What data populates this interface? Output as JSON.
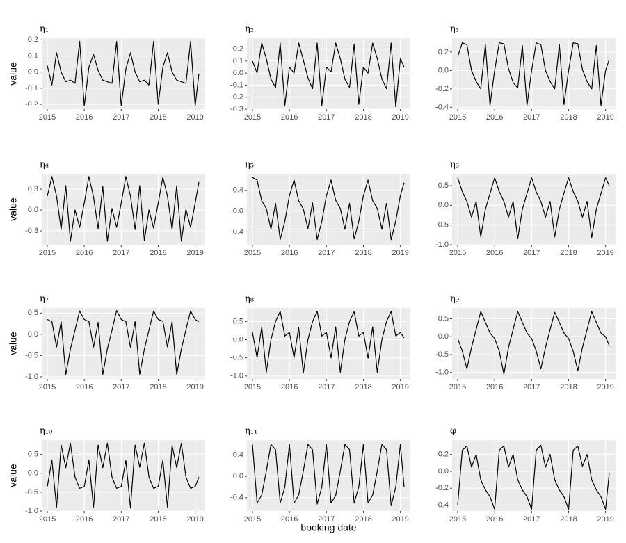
{
  "chart_data": [
    {
      "type": "line",
      "title": "η₁",
      "ylabel": "value",
      "color": "#000000",
      "grid": true,
      "x": [
        2015,
        2015.125,
        2015.25,
        2015.375,
        2015.5,
        2015.625,
        2015.75,
        2015.875,
        2016,
        2016.125,
        2016.25,
        2016.375,
        2016.5,
        2016.625,
        2016.75,
        2016.875,
        2017,
        2017.125,
        2017.25,
        2017.375,
        2017.5,
        2017.625,
        2017.75,
        2017.875,
        2018,
        2018.125,
        2018.25,
        2018.375,
        2018.5,
        2018.625,
        2018.75,
        2018.875,
        2019,
        2019.1
      ],
      "values": [
        0.04,
        -0.08,
        0.12,
        0.0,
        -0.06,
        -0.05,
        -0.07,
        0.19,
        -0.21,
        0.03,
        0.11,
        0.01,
        -0.05,
        -0.06,
        -0.07,
        0.19,
        -0.21,
        0.02,
        0.12,
        0.0,
        -0.06,
        -0.05,
        -0.08,
        0.19,
        -0.2,
        0.03,
        0.12,
        0.0,
        -0.05,
        -0.06,
        -0.07,
        0.19,
        -0.21,
        -0.01
      ],
      "xlim": [
        2014.85,
        2019.27
      ],
      "xticks": [
        2015,
        2016,
        2017,
        2018,
        2019
      ],
      "ylim": [
        -0.23,
        0.21
      ],
      "yticks": [
        -0.2,
        -0.1,
        {
          "value": 0,
          "label": "0.0"
        },
        0.1,
        0.2
      ]
    },
    {
      "type": "line",
      "title": "η₂",
      "color": "#000000",
      "grid": true,
      "x": [
        2015,
        2015.125,
        2015.25,
        2015.375,
        2015.5,
        2015.625,
        2015.75,
        2015.875,
        2016,
        2016.125,
        2016.25,
        2016.375,
        2016.5,
        2016.625,
        2016.75,
        2016.875,
        2017,
        2017.125,
        2017.25,
        2017.375,
        2017.5,
        2017.625,
        2017.75,
        2017.875,
        2018,
        2018.125,
        2018.25,
        2018.375,
        2018.5,
        2018.625,
        2018.75,
        2018.875,
        2019,
        2019.1
      ],
      "values": [
        0.1,
        0.0,
        0.25,
        0.12,
        -0.05,
        -0.12,
        0.25,
        -0.27,
        0.05,
        0.0,
        0.25,
        0.11,
        -0.04,
        -0.13,
        0.25,
        -0.27,
        0.05,
        0.01,
        0.25,
        0.12,
        -0.05,
        -0.12,
        0.24,
        -0.26,
        0.05,
        0.0,
        0.25,
        0.12,
        -0.05,
        -0.13,
        0.25,
        -0.28,
        0.12,
        0.05
      ],
      "xlim": [
        2014.85,
        2019.27
      ],
      "xticks": [
        2015,
        2016,
        2017,
        2018,
        2019
      ],
      "ylim": [
        -0.3,
        0.29
      ],
      "yticks": [
        -0.3,
        -0.2,
        -0.1,
        {
          "value": 0,
          "label": "0.0"
        },
        0.1,
        0.2
      ]
    },
    {
      "type": "line",
      "title": "η₃",
      "color": "#000000",
      "grid": true,
      "x": [
        2015,
        2015.125,
        2015.25,
        2015.375,
        2015.5,
        2015.625,
        2015.75,
        2015.875,
        2016,
        2016.125,
        2016.25,
        2016.375,
        2016.5,
        2016.625,
        2016.75,
        2016.875,
        2017,
        2017.125,
        2017.25,
        2017.375,
        2017.5,
        2017.625,
        2017.75,
        2017.875,
        2018,
        2018.125,
        2018.25,
        2018.375,
        2018.5,
        2018.625,
        2018.75,
        2018.875,
        2019,
        2019.1
      ],
      "values": [
        0.15,
        0.3,
        0.28,
        0.0,
        -0.12,
        -0.2,
        0.28,
        -0.38,
        0.0,
        0.3,
        0.29,
        0.02,
        -0.13,
        -0.19,
        0.27,
        -0.38,
        0.0,
        0.3,
        0.28,
        0.0,
        -0.12,
        -0.2,
        0.28,
        -0.37,
        0.0,
        0.3,
        0.29,
        0.01,
        -0.12,
        -0.2,
        0.27,
        -0.38,
        0.0,
        0.12
      ],
      "xlim": [
        2014.85,
        2019.27
      ],
      "xticks": [
        2015,
        2016,
        2017,
        2018,
        2019
      ],
      "ylim": [
        -0.42,
        0.35
      ],
      "yticks": [
        -0.4,
        -0.2,
        {
          "value": 0,
          "label": "0.0"
        },
        0.2
      ]
    },
    {
      "type": "line",
      "title": "η₄",
      "ylabel": "value",
      "color": "#000000",
      "grid": true,
      "x": [
        2015,
        2015.125,
        2015.25,
        2015.375,
        2015.5,
        2015.625,
        2015.75,
        2015.875,
        2016,
        2016.125,
        2016.25,
        2016.375,
        2016.5,
        2016.625,
        2016.75,
        2016.875,
        2017,
        2017.125,
        2017.25,
        2017.375,
        2017.5,
        2017.625,
        2017.75,
        2017.875,
        2018,
        2018.125,
        2018.25,
        2018.375,
        2018.5,
        2018.625,
        2018.75,
        2018.875,
        2019,
        2019.1
      ],
      "values": [
        0.2,
        0.48,
        0.2,
        -0.28,
        0.35,
        -0.45,
        0.0,
        -0.25,
        0.1,
        0.48,
        0.19,
        -0.27,
        0.34,
        -0.45,
        0.02,
        -0.25,
        0.1,
        0.48,
        0.2,
        -0.28,
        0.35,
        -0.44,
        0.0,
        -0.26,
        0.1,
        0.47,
        0.2,
        -0.28,
        0.35,
        -0.45,
        0.01,
        -0.25,
        0.1,
        0.4
      ],
      "xlim": [
        2014.85,
        2019.27
      ],
      "xticks": [
        2015,
        2016,
        2017,
        2018,
        2019
      ],
      "ylim": [
        -0.5,
        0.52
      ],
      "yticks": [
        -0.3,
        {
          "value": 0,
          "label": "0.0"
        },
        0.3
      ]
    },
    {
      "type": "line",
      "title": "η₅",
      "color": "#000000",
      "grid": true,
      "x": [
        2015,
        2015.125,
        2015.25,
        2015.375,
        2015.5,
        2015.625,
        2015.75,
        2015.875,
        2016,
        2016.125,
        2016.25,
        2016.375,
        2016.5,
        2016.625,
        2016.75,
        2016.875,
        2017,
        2017.125,
        2017.25,
        2017.375,
        2017.5,
        2017.625,
        2017.75,
        2017.875,
        2018,
        2018.125,
        2018.25,
        2018.375,
        2018.5,
        2018.625,
        2018.75,
        2018.875,
        2019,
        2019.1
      ],
      "values": [
        0.65,
        0.6,
        0.2,
        0.05,
        -0.35,
        0.15,
        -0.55,
        -0.2,
        0.3,
        0.6,
        0.2,
        0.04,
        -0.34,
        0.16,
        -0.55,
        -0.2,
        0.3,
        0.6,
        0.21,
        0.05,
        -0.35,
        0.15,
        -0.54,
        -0.2,
        0.3,
        0.6,
        0.2,
        0.05,
        -0.35,
        0.15,
        -0.55,
        -0.19,
        0.3,
        0.55
      ],
      "xlim": [
        2014.85,
        2019.27
      ],
      "xticks": [
        2015,
        2016,
        2017,
        2018,
        2019
      ],
      "ylim": [
        -0.65,
        0.72
      ],
      "yticks": [
        -0.4,
        {
          "value": 0,
          "label": "0.0"
        },
        0.4
      ]
    },
    {
      "type": "line",
      "title": "η₆",
      "color": "#000000",
      "grid": true,
      "x": [
        2015,
        2015.125,
        2015.25,
        2015.375,
        2015.5,
        2015.625,
        2015.75,
        2015.875,
        2016,
        2016.125,
        2016.25,
        2016.375,
        2016.5,
        2016.625,
        2016.75,
        2016.875,
        2017,
        2017.125,
        2017.25,
        2017.375,
        2017.5,
        2017.625,
        2017.75,
        2017.875,
        2018,
        2018.125,
        2018.25,
        2018.375,
        2018.5,
        2018.625,
        2018.75,
        2018.875,
        2019,
        2019.1
      ],
      "values": [
        0.7,
        0.35,
        0.1,
        -0.3,
        0.1,
        -0.8,
        -0.1,
        0.3,
        0.7,
        0.35,
        0.1,
        -0.3,
        0.1,
        -0.85,
        -0.1,
        0.3,
        0.7,
        0.34,
        0.1,
        -0.3,
        0.1,
        -0.8,
        -0.1,
        0.31,
        0.7,
        0.35,
        0.1,
        -0.3,
        0.1,
        -0.82,
        -0.1,
        0.3,
        0.7,
        0.5
      ],
      "xlim": [
        2014.85,
        2019.27
      ],
      "xticks": [
        2015,
        2016,
        2017,
        2018,
        2019
      ],
      "ylim": [
        -1.0,
        0.8
      ],
      "yticks": [
        {
          "value": -1,
          "label": "-1.0"
        },
        -0.5,
        {
          "value": 0,
          "label": "0.0"
        },
        0.5
      ]
    },
    {
      "type": "line",
      "title": "η₇",
      "ylabel": "value",
      "color": "#000000",
      "grid": true,
      "x": [
        2015,
        2015.125,
        2015.25,
        2015.375,
        2015.5,
        2015.625,
        2015.75,
        2015.875,
        2016,
        2016.125,
        2016.25,
        2016.375,
        2016.5,
        2016.625,
        2016.75,
        2016.875,
        2017,
        2017.125,
        2017.25,
        2017.375,
        2017.5,
        2017.625,
        2017.75,
        2017.875,
        2018,
        2018.125,
        2018.25,
        2018.375,
        2018.5,
        2018.625,
        2018.75,
        2018.875,
        2019,
        2019.1
      ],
      "values": [
        0.35,
        0.3,
        -0.3,
        0.3,
        -0.95,
        -0.35,
        0.1,
        0.55,
        0.35,
        0.3,
        -0.3,
        0.28,
        -0.95,
        -0.34,
        0.1,
        0.56,
        0.35,
        0.3,
        -0.31,
        0.3,
        -0.94,
        -0.35,
        0.1,
        0.55,
        0.35,
        0.31,
        -0.3,
        0.3,
        -0.95,
        -0.35,
        0.11,
        0.55,
        0.35,
        0.3
      ],
      "xlim": [
        2014.85,
        2019.27
      ],
      "xticks": [
        2015,
        2016,
        2017,
        2018,
        2019
      ],
      "ylim": [
        -1.05,
        0.62
      ],
      "yticks": [
        {
          "value": -1,
          "label": "-1.0"
        },
        -0.5,
        {
          "value": 0,
          "label": "0.0"
        },
        0.5
      ]
    },
    {
      "type": "line",
      "title": "η₈",
      "color": "#000000",
      "grid": true,
      "x": [
        2015,
        2015.125,
        2015.25,
        2015.375,
        2015.5,
        2015.625,
        2015.75,
        2015.875,
        2016,
        2016.125,
        2016.25,
        2016.375,
        2016.5,
        2016.625,
        2016.75,
        2016.875,
        2017,
        2017.125,
        2017.25,
        2017.375,
        2017.5,
        2017.625,
        2017.75,
        2017.875,
        2018,
        2018.125,
        2018.25,
        2018.375,
        2018.5,
        2018.625,
        2018.75,
        2018.875,
        2019,
        2019.1
      ],
      "values": [
        0.2,
        -0.5,
        0.35,
        -0.9,
        0.0,
        0.5,
        0.78,
        0.1,
        0.2,
        -0.5,
        0.34,
        -0.92,
        0.0,
        0.5,
        0.78,
        0.1,
        0.2,
        -0.5,
        0.35,
        -0.9,
        0.01,
        0.5,
        0.77,
        0.1,
        0.2,
        -0.51,
        0.35,
        -0.9,
        0.0,
        0.5,
        0.78,
        0.1,
        0.2,
        0.05
      ],
      "xlim": [
        2014.85,
        2019.27
      ],
      "xticks": [
        2015,
        2016,
        2017,
        2018,
        2019
      ],
      "ylim": [
        -1.08,
        0.87
      ],
      "yticks": [
        {
          "value": -1,
          "label": "-1.0"
        },
        -0.5,
        {
          "value": 0,
          "label": "0.0"
        },
        0.5
      ]
    },
    {
      "type": "line",
      "title": "η₉",
      "color": "#000000",
      "grid": true,
      "x": [
        2015,
        2015.125,
        2015.25,
        2015.375,
        2015.5,
        2015.625,
        2015.75,
        2015.875,
        2016,
        2016.125,
        2016.25,
        2016.375,
        2016.5,
        2016.625,
        2016.75,
        2016.875,
        2017,
        2017.125,
        2017.25,
        2017.375,
        2017.5,
        2017.625,
        2017.75,
        2017.875,
        2018,
        2018.125,
        2018.25,
        2018.375,
        2018.5,
        2018.625,
        2018.75,
        2018.875,
        2019,
        2019.1
      ],
      "values": [
        -0.05,
        -0.4,
        -0.9,
        -0.3,
        0.2,
        0.7,
        0.4,
        0.1,
        -0.05,
        -0.4,
        -1.05,
        -0.3,
        0.2,
        0.7,
        0.4,
        0.1,
        -0.05,
        -0.4,
        -0.9,
        -0.3,
        0.2,
        0.68,
        0.4,
        0.1,
        -0.05,
        -0.41,
        -0.95,
        -0.3,
        0.2,
        0.7,
        0.4,
        0.1,
        0.0,
        -0.25
      ],
      "xlim": [
        2014.85,
        2019.27
      ],
      "xticks": [
        2015,
        2016,
        2017,
        2018,
        2019
      ],
      "ylim": [
        -1.18,
        0.8
      ],
      "yticks": [
        {
          "value": -1,
          "label": "-1.0"
        },
        -0.5,
        {
          "value": 0,
          "label": "0.0"
        },
        0.5
      ]
    },
    {
      "type": "line",
      "title": "η₁₀",
      "ylabel": "value",
      "color": "#000000",
      "grid": true,
      "x": [
        2015,
        2015.125,
        2015.25,
        2015.375,
        2015.5,
        2015.625,
        2015.75,
        2015.875,
        2016,
        2016.125,
        2016.25,
        2016.375,
        2016.5,
        2016.625,
        2016.75,
        2016.875,
        2017,
        2017.125,
        2017.25,
        2017.375,
        2017.5,
        2017.625,
        2017.75,
        2017.875,
        2018,
        2018.125,
        2018.25,
        2018.375,
        2018.5,
        2018.625,
        2018.75,
        2018.875,
        2019,
        2019.1
      ],
      "values": [
        -0.35,
        0.35,
        -0.9,
        0.75,
        0.15,
        0.8,
        -0.1,
        -0.4,
        -0.35,
        0.35,
        -0.9,
        0.75,
        0.15,
        0.8,
        -0.1,
        -0.4,
        -0.35,
        0.34,
        -0.92,
        0.75,
        0.16,
        0.8,
        -0.1,
        -0.4,
        -0.35,
        0.35,
        -0.9,
        0.74,
        0.15,
        0.8,
        -0.1,
        -0.4,
        -0.35,
        -0.1
      ],
      "xlim": [
        2014.85,
        2019.27
      ],
      "xticks": [
        2015,
        2016,
        2017,
        2018,
        2019
      ],
      "ylim": [
        -1.0,
        0.88
      ],
      "yticks": [
        {
          "value": -1,
          "label": "-1.0"
        },
        -0.5,
        {
          "value": 0,
          "label": "0.0"
        },
        0.5
      ]
    },
    {
      "type": "line",
      "title": "η₁₁",
      "xlabel": "booking date",
      "color": "#000000",
      "grid": true,
      "x": [
        2015,
        2015.125,
        2015.25,
        2015.375,
        2015.5,
        2015.625,
        2015.75,
        2015.875,
        2016,
        2016.125,
        2016.25,
        2016.375,
        2016.5,
        2016.625,
        2016.75,
        2016.875,
        2017,
        2017.125,
        2017.25,
        2017.375,
        2017.5,
        2017.625,
        2017.75,
        2017.875,
        2018,
        2018.125,
        2018.25,
        2018.375,
        2018.5,
        2018.625,
        2018.75,
        2018.875,
        2019,
        2019.1
      ],
      "values": [
        0.6,
        -0.5,
        -0.35,
        0.1,
        0.6,
        0.5,
        -0.5,
        -0.2,
        0.6,
        -0.5,
        -0.35,
        0.1,
        0.6,
        0.5,
        -0.52,
        -0.2,
        0.6,
        -0.5,
        -0.36,
        0.1,
        0.6,
        0.5,
        -0.5,
        -0.2,
        0.6,
        -0.5,
        -0.35,
        0.1,
        0.6,
        0.5,
        -0.55,
        -0.2,
        0.6,
        -0.2
      ],
      "xlim": [
        2014.85,
        2019.27
      ],
      "xticks": [
        2015,
        2016,
        2017,
        2018,
        2019
      ],
      "ylim": [
        -0.65,
        0.68
      ],
      "yticks": [
        -0.4,
        {
          "value": 0,
          "label": "0.0"
        },
        0.4
      ]
    },
    {
      "type": "line",
      "title": "φ",
      "color": "#000000",
      "grid": true,
      "x": [
        2015,
        2015.125,
        2015.25,
        2015.375,
        2015.5,
        2015.625,
        2015.75,
        2015.875,
        2016,
        2016.125,
        2016.25,
        2016.375,
        2016.5,
        2016.625,
        2016.75,
        2016.875,
        2017,
        2017.125,
        2017.25,
        2017.375,
        2017.5,
        2017.625,
        2017.75,
        2017.875,
        2018,
        2018.125,
        2018.25,
        2018.375,
        2018.5,
        2018.625,
        2018.75,
        2018.875,
        2019,
        2019.1
      ],
      "values": [
        -0.4,
        0.25,
        0.3,
        0.05,
        0.2,
        -0.1,
        -0.22,
        -0.3,
        -0.45,
        0.25,
        0.3,
        0.05,
        0.2,
        -0.1,
        -0.22,
        -0.3,
        -0.45,
        0.25,
        0.31,
        0.05,
        0.2,
        -0.1,
        -0.22,
        -0.3,
        -0.45,
        0.25,
        0.3,
        0.06,
        0.2,
        -0.1,
        -0.22,
        -0.3,
        -0.45,
        -0.02
      ],
      "xlim": [
        2014.85,
        2019.27
      ],
      "xticks": [
        2015,
        2016,
        2017,
        2018,
        2019
      ],
      "ylim": [
        -0.47,
        0.37
      ],
      "yticks": [
        -0.4,
        -0.2,
        {
          "value": 0,
          "label": "0.0"
        },
        0.2
      ]
    }
  ]
}
